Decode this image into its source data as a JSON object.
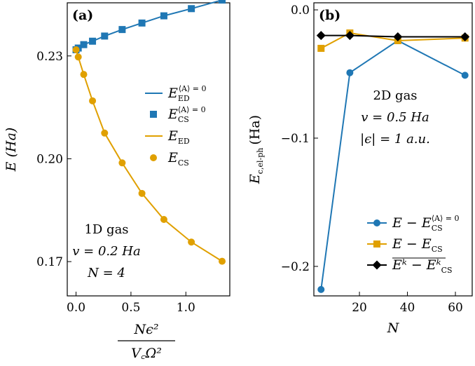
{
  "chart_data": [
    {
      "type": "line",
      "panel": "(a)",
      "xlabel_num": "Nϵ²",
      "xlabel_den": "V꜀Ω²",
      "ylabel": "E (Ha)",
      "xlim": [
        -0.08,
        1.4
      ],
      "ylim": [
        0.16,
        0.2455
      ],
      "xticks": [
        0.0,
        0.5,
        1.0
      ],
      "xtick_labels": [
        "0.0",
        "0.5",
        "1.0"
      ],
      "yticks": [
        0.17,
        0.2,
        0.23
      ],
      "ytick_labels": [
        "0.17",
        "0.20",
        "0.23"
      ],
      "annotation": [
        "1D gas",
        "v = 0.2 Ha",
        "N = 4"
      ],
      "series": [
        {
          "name": "E_ED^{⟨A⟩=0}",
          "legend": "E",
          "sub": "ED",
          "sup": "⟨A⟩ = 0",
          "style": "line",
          "color": "#1f77b4",
          "x": [
            0,
            0.02,
            0.07,
            0.15,
            0.26,
            0.42,
            0.6,
            0.8,
            1.05,
            1.33
          ],
          "y": [
            0.2318,
            0.2323,
            0.2333,
            0.2343,
            0.2358,
            0.2377,
            0.2396,
            0.2417,
            0.2438,
            0.2463
          ]
        },
        {
          "name": "E_CS^{⟨A⟩=0}",
          "legend": "E",
          "sub": "CS",
          "sup": "⟨A⟩ = 0",
          "style": "square",
          "color": "#1f77b4",
          "x": [
            0,
            0.02,
            0.07,
            0.15,
            0.26,
            0.42,
            0.6,
            0.8,
            1.05,
            1.33
          ],
          "y": [
            0.2318,
            0.2323,
            0.2333,
            0.2343,
            0.2358,
            0.2377,
            0.2396,
            0.2417,
            0.2438,
            0.2463
          ]
        },
        {
          "name": "E_ED",
          "legend": "E",
          "sub": "ED",
          "sup": "",
          "style": "line",
          "color": "#e0a000",
          "x": [
            0,
            0.02,
            0.07,
            0.15,
            0.26,
            0.42,
            0.6,
            0.8,
            1.05,
            1.33
          ],
          "y": [
            0.2318,
            0.2297,
            0.2246,
            0.2169,
            0.2075,
            0.1988,
            0.1899,
            0.1823,
            0.1757,
            0.1701
          ]
        },
        {
          "name": "E_CS",
          "legend": "E",
          "sub": "CS",
          "sup": "",
          "style": "circle",
          "color": "#e0a000",
          "x": [
            0,
            0.02,
            0.07,
            0.15,
            0.26,
            0.42,
            0.6,
            0.8,
            1.05,
            1.33
          ],
          "y": [
            0.2318,
            0.2297,
            0.2246,
            0.2169,
            0.2075,
            0.1988,
            0.1899,
            0.1823,
            0.1757,
            0.1701
          ]
        }
      ]
    },
    {
      "type": "line",
      "panel": "(b)",
      "xlabel": "N",
      "ylabel": "E_c,el-ph (Ha)",
      "ylabel_main": "E",
      "ylabel_sub": "c,el-ph",
      "ylabel_unit": "(Ha)",
      "xlim": [
        1,
        67
      ],
      "ylim": [
        -0.223,
        0.0055
      ],
      "xticks": [
        20,
        40,
        60
      ],
      "xtick_labels": [
        "20",
        "40",
        "60"
      ],
      "yticks": [
        0.0,
        -0.1,
        -0.2
      ],
      "ytick_labels": [
        "0.0",
        "−0.1",
        "−0.2"
      ],
      "annotation": [
        "2D gas",
        "v = 0.5 Ha",
        "|ϵ| = 1 a.u."
      ],
      "series": [
        {
          "name": "E − E_CS^{⟨A⟩=0}",
          "legend": "E − E",
          "sub": "CS",
          "sup": "⟨A⟩ = 0",
          "overline": false,
          "marker": "circle",
          "color": "#1f77b4",
          "x": [
            4,
            16,
            36,
            64
          ],
          "y": [
            -0.218,
            -0.049,
            -0.024,
            -0.051
          ]
        },
        {
          "name": "E − E_CS",
          "legend": "E − E",
          "sub": "CS",
          "sup": "",
          "overline": false,
          "marker": "square",
          "color": "#e0a000",
          "x": [
            4,
            16,
            36,
            64
          ],
          "y": [
            -0.03,
            -0.018,
            -0.024,
            -0.022
          ]
        },
        {
          "name": "E^κ − E_CS^κ (averaged)",
          "legend": "Eᵏ − Eᵏ",
          "sub": "CS",
          "sup": "",
          "overline": true,
          "marker": "diamond",
          "color": "#000000",
          "x": [
            4,
            16,
            36,
            64
          ],
          "y": [
            -0.02,
            -0.02,
            -0.021,
            -0.021
          ]
        }
      ]
    }
  ]
}
